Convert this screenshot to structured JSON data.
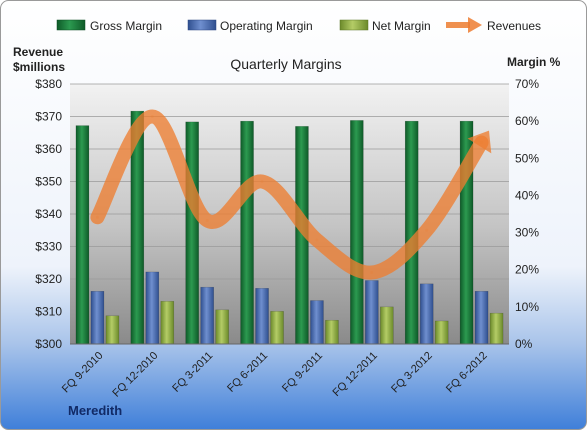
{
  "chart_data": {
    "type": "bar",
    "title": "Quarterly Margins",
    "company": "Meredith",
    "y_left_label_lines": [
      "Revenue",
      "$millions"
    ],
    "y_right_label": "Margin %",
    "categories": [
      "FQ 9-2010",
      "FQ 12-2010",
      "FQ 3-2011",
      "FQ 6-2011",
      "FQ 9-2011",
      "FQ 12-2011",
      "FQ 3-2012",
      "FQ 6-2012"
    ],
    "y_left": {
      "min": 300,
      "max": 380,
      "step": 10,
      "tick_labels": [
        "$300",
        "$310",
        "$320",
        "$330",
        "$340",
        "$350",
        "$360",
        "$370",
        "$380"
      ]
    },
    "y_right": {
      "min": 0,
      "max": 70,
      "step": 10,
      "tick_labels": [
        "0%",
        "10%",
        "20%",
        "30%",
        "40%",
        "50%",
        "60%",
        "70%"
      ]
    },
    "series": [
      {
        "name": "Gross Margin",
        "axis": "right",
        "kind": "bar",
        "color": "#1a7a3c",
        "values": [
          58.8,
          62.7,
          59.8,
          60.0,
          58.6,
          60.2,
          60.0,
          60.0
        ]
      },
      {
        "name": "Operating Margin",
        "axis": "right",
        "kind": "bar",
        "color": "#4a6fb5",
        "values": [
          14.2,
          19.4,
          15.3,
          15.0,
          11.7,
          17.1,
          16.2,
          14.2
        ]
      },
      {
        "name": "Net Margin",
        "axis": "right",
        "kind": "bar",
        "color": "#8fae3f",
        "values": [
          7.6,
          11.5,
          9.2,
          8.8,
          6.4,
          10.0,
          6.2,
          8.3
        ]
      },
      {
        "name": "Revenues",
        "axis": "left",
        "kind": "line",
        "color": "#ed7d31",
        "values": [
          339,
          370,
          338,
          350,
          332,
          322,
          335,
          362
        ]
      }
    ],
    "grid": true,
    "legend_position": "top"
  }
}
